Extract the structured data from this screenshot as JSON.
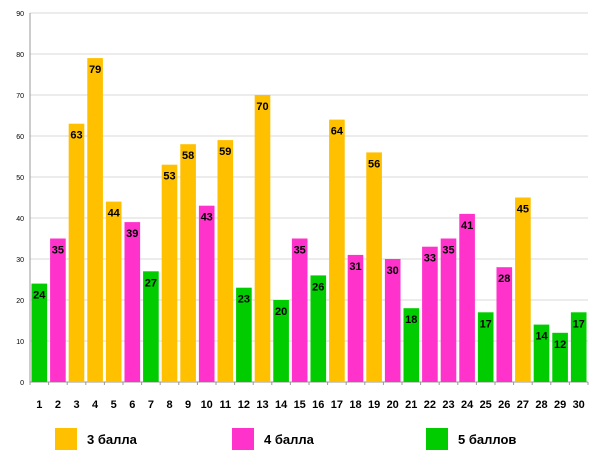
{
  "chart_data": {
    "type": "bar",
    "categories": [
      "1",
      "2",
      "3",
      "4",
      "5",
      "6",
      "7",
      "8",
      "9",
      "10",
      "11",
      "12",
      "13",
      "14",
      "15",
      "16",
      "17",
      "18",
      "19",
      "20",
      "21",
      "22",
      "23",
      "24",
      "25",
      "26",
      "27",
      "28",
      "29",
      "30"
    ],
    "values": [
      24,
      35,
      63,
      79,
      44,
      39,
      27,
      53,
      58,
      43,
      59,
      23,
      70,
      20,
      35,
      26,
      64,
      31,
      56,
      30,
      18,
      33,
      35,
      41,
      17,
      28,
      45,
      14,
      12,
      17
    ],
    "groups": [
      "5 баллов",
      "4 балла",
      "3 балла",
      "3 балла",
      "3 балла",
      "4 балла",
      "5 баллов",
      "3 балла",
      "3 балла",
      "4 балла",
      "3 балла",
      "5 баллов",
      "3 балла",
      "5 баллов",
      "4 балла",
      "5 баллов",
      "3 балла",
      "4 балла",
      "3 балла",
      "4 балла",
      "5 баллов",
      "4 балла",
      "4 балла",
      "4 балла",
      "5 баллов",
      "4 балла",
      "3 балла",
      "5 баллов",
      "5 баллов",
      "5 баллов"
    ],
    "series": [
      {
        "name": "3 балла",
        "color": "#FFC000"
      },
      {
        "name": "4 балла",
        "color": "#FF33CC"
      },
      {
        "name": "5 баллов",
        "color": "#00CC00"
      }
    ],
    "yticks": [
      "0",
      "10",
      "20",
      "30",
      "40",
      "50",
      "60",
      "70",
      "80",
      "90"
    ],
    "ylim": [
      0,
      90
    ],
    "grid": true,
    "legend_position": "bottom"
  }
}
